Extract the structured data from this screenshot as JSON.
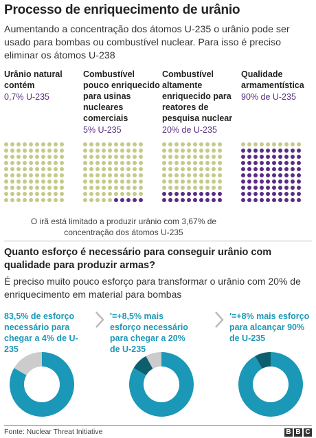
{
  "title": "Processo de enriquecimento de urânio",
  "intro": "Aumentando a concentração dos átomos U-235 o urânio pode ser usado para bombas ou combustível nuclear. Para isso é preciso eliminar os átomos U-238",
  "columns": [
    {
      "title": "Urânio natural contém",
      "pct": "0,7% U-235",
      "purple_dots": 0
    },
    {
      "title": "Combustível pouco enriquecido para usinas nucleares comerciais",
      "pct": "5% U-235",
      "purple_dots": 5
    },
    {
      "title": "Combustível altamente enriquecido para reatores de pesquisa nuclear",
      "pct": "20% de U-235",
      "purple_dots": 20
    },
    {
      "title": "Qualidade armamentística",
      "pct": "90% de U-235",
      "purple_dots": 90
    }
  ],
  "note": "O irã está limitado a produzir urânio com 3,67% de concentração dos átomos U-235",
  "question": "Quanto esforço é necessário para conseguir urânio com qualidade para produzir armas?",
  "answer": "É preciso muito pouco esforço para transformar o urânio com 20% de enriquecimento em material para bombas",
  "efforts": [
    {
      "text": "83,5% de esforço necessário para chegar a 4% de U-235",
      "prev_pct": 0,
      "new_pct": 83.5
    },
    {
      "text": "'=+8,5% mais esforço necessário para chegar a 20% de U-235",
      "prev_pct": 83.5,
      "new_pct": 8.5
    },
    {
      "text": "'=+8% mais esforço para alcançar 90% de U-235",
      "prev_pct": 92,
      "new_pct": 8
    }
  ],
  "source": "Fonte: Nuclear Threat Initiative",
  "logo": [
    "B",
    "B",
    "C"
  ],
  "colors": {
    "green_dot": "#c5ca8a",
    "purple_dot": "#5a2d82",
    "teal": "#1b98b8",
    "teal_dark": "#0e5f6e",
    "grey": "#cccccc",
    "chevron": "#bbbbbb"
  }
}
